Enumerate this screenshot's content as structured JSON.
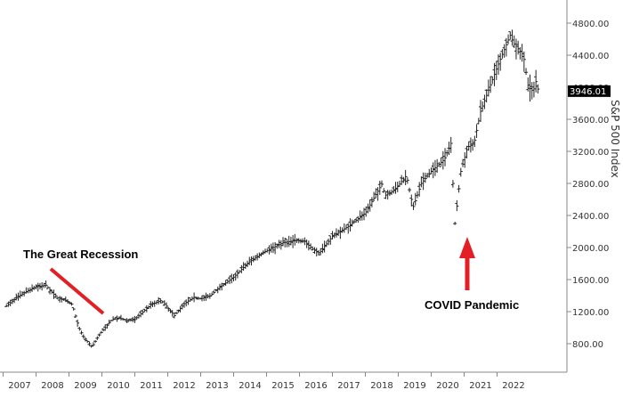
{
  "chart_data": {
    "type": "line",
    "title": "",
    "xlabel": "",
    "ylabel": "S&P 500 Index",
    "ylim": [
      600,
      4900
    ],
    "xlim": [
      2006.6,
      2022.9
    ],
    "x_ticks": [
      "2007",
      "2008",
      "2009",
      "2010",
      "2011",
      "2012",
      "2013",
      "2014",
      "2015",
      "2016",
      "2017",
      "2018",
      "2019",
      "2020",
      "2021",
      "2022"
    ],
    "y_ticks": [
      "800.00",
      "1200.00",
      "1600.00",
      "2000.00",
      "2400.00",
      "2800.00",
      "3200.00",
      "3600.00",
      "4000.00",
      "4400.00",
      "4800.00"
    ],
    "last_value": "3946.01",
    "series": [
      {
        "x": [
          2006.6,
          2006.9,
          2007.2,
          2007.5,
          2007.8,
          2008.0,
          2008.2,
          2008.4,
          2008.6,
          2008.8,
          2008.95,
          2009.1,
          2009.2,
          2009.4,
          2009.6,
          2009.8,
          2010.0,
          2010.3,
          2010.5,
          2010.7,
          2011.0,
          2011.3,
          2011.5,
          2011.7,
          2012.0,
          2012.3,
          2012.5,
          2012.8,
          2013.0,
          2013.5,
          2014.0,
          2014.5,
          2015.0,
          2015.4,
          2015.65,
          2015.9,
          2016.1,
          2016.5,
          2017.0,
          2017.5,
          2018.0,
          2018.1,
          2018.4,
          2018.75,
          2018.95,
          2019.2,
          2019.5,
          2019.9,
          2020.1,
          2020.22,
          2020.4,
          2020.6,
          2020.8,
          2021.0,
          2021.5,
          2021.9,
          2022.0,
          2022.3,
          2022.45,
          2022.6,
          2022.7,
          2022.75
        ],
        "y": [
          1270,
          1370,
          1450,
          1510,
          1530,
          1430,
          1360,
          1340,
          1290,
          1000,
          880,
          810,
          760,
          900,
          1000,
          1100,
          1120,
          1090,
          1100,
          1180,
          1290,
          1340,
          1250,
          1150,
          1300,
          1380,
          1360,
          1400,
          1480,
          1630,
          1830,
          1960,
          2060,
          2090,
          2080,
          1980,
          1930,
          2140,
          2270,
          2430,
          2790,
          2650,
          2720,
          2900,
          2500,
          2800,
          2950,
          3100,
          3300,
          2300,
          2950,
          3250,
          3300,
          3700,
          4250,
          4650,
          4550,
          4400,
          4000,
          3950,
          4100,
          3946
        ]
      }
    ],
    "annotations": [
      "The Great Recession",
      "COVID Pandemic"
    ]
  }
}
